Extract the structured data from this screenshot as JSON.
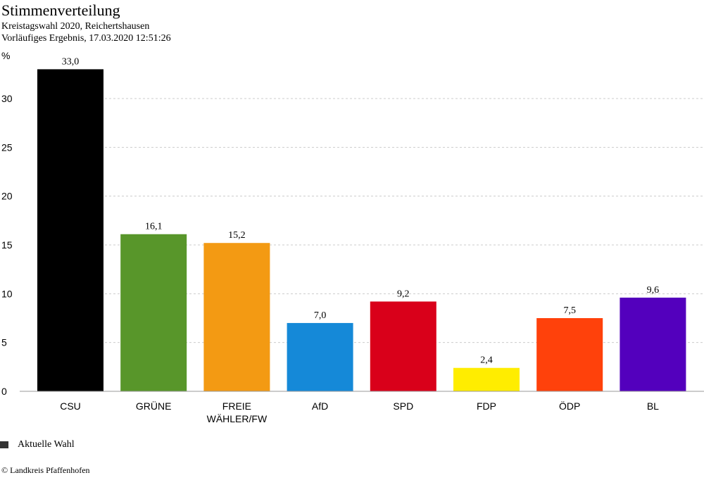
{
  "title": "Stimmenverteilung",
  "subtitle1": "Kreistagswahl 2020, Reichertshausen",
  "subtitle2": "Vorläufiges Ergebnis, 17.03.2020 12:51:26",
  "legend": {
    "label": "Aktuelle Wahl",
    "color": "#333333"
  },
  "copyright": "© Landkreis Pfaffenhofen",
  "chart_data": {
    "type": "bar",
    "ylabel": "%",
    "ylim": [
      0,
      35
    ],
    "yticks": [
      0,
      5,
      10,
      15,
      20,
      25,
      30
    ],
    "grid": true,
    "legend_placement": "bottom-left",
    "categories": [
      [
        "CSU"
      ],
      [
        "GRÜNE"
      ],
      [
        "FREIE",
        "WÄHLER/FW"
      ],
      [
        "AfD"
      ],
      [
        "SPD"
      ],
      [
        "FDP"
      ],
      [
        "ÖDP"
      ],
      [
        "BL"
      ]
    ],
    "values": [
      33.0,
      16.1,
      15.2,
      7.0,
      9.2,
      2.4,
      7.5,
      9.6
    ],
    "labels": [
      "33,0",
      "16,1",
      "15,2",
      "7,0",
      "9,2",
      "2,4",
      "7,5",
      "9,6"
    ],
    "colors": [
      "#000000",
      "#58962a",
      "#f39a13",
      "#1589d8",
      "#d9001a",
      "#ffed00",
      "#ff410b",
      "#5300bd"
    ]
  }
}
